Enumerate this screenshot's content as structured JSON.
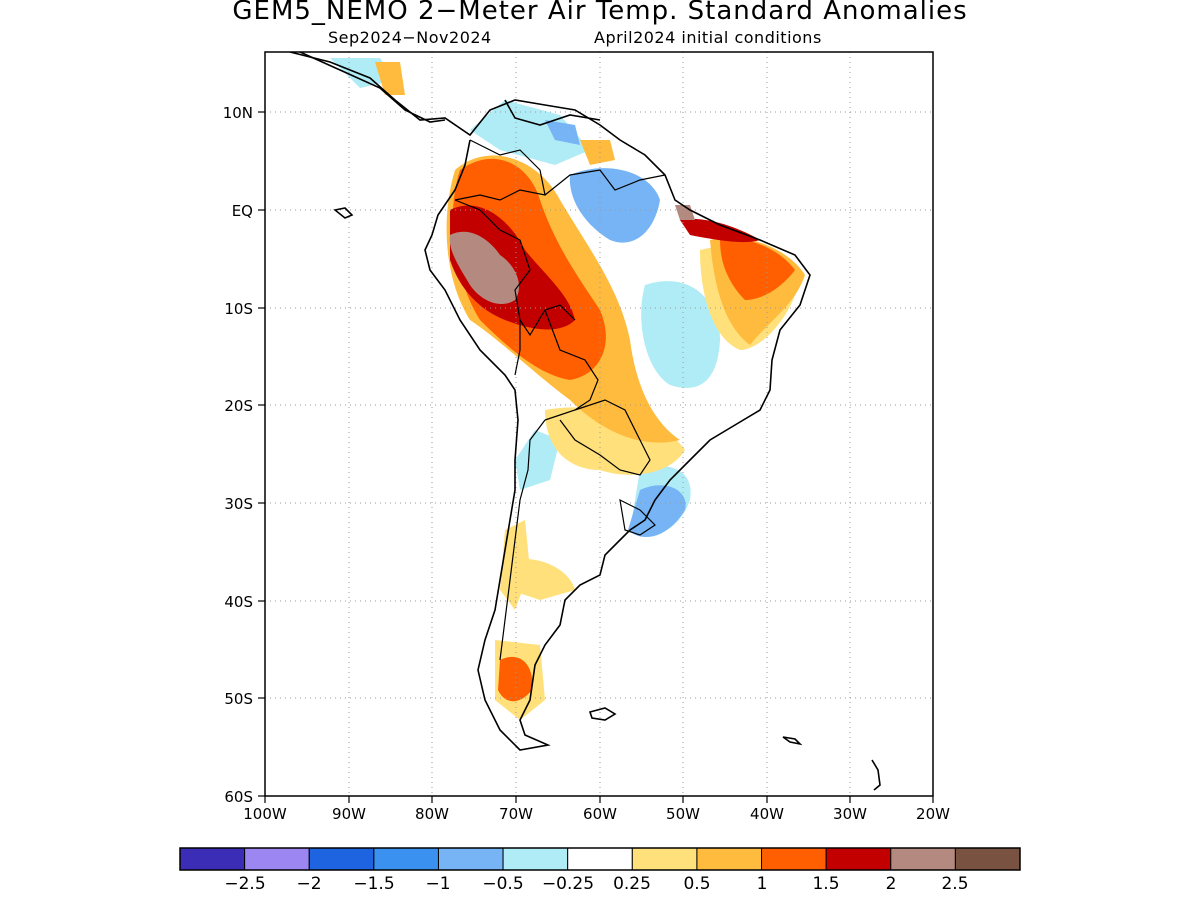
{
  "title": "GEM5_NEMO 2-Meter Air Temp. Standard Anomalies",
  "subtitle_left": "Sep2024-Nov2024",
  "subtitle_right": "April2024 initial conditions",
  "map": {
    "lon_ticks": [
      "100W",
      "90W",
      "80W",
      "70W",
      "60W",
      "50W",
      "40W",
      "30W",
      "20W"
    ],
    "lat_ticks": [
      "10N",
      "EQ",
      "10S",
      "20S",
      "30S",
      "40S",
      "50S",
      "60S"
    ],
    "lon_values": [
      -100,
      -90,
      -80,
      -70,
      -60,
      -50,
      -40,
      -30,
      -20
    ],
    "lat_values": [
      10,
      0,
      -10,
      -20,
      -30,
      -40,
      -50,
      -60
    ],
    "grid": "dotted",
    "projection": "lat-lon"
  },
  "colorbar": {
    "colors": [
      "#3b2db5",
      "#9b86f2",
      "#1e64e0",
      "#3a91ef",
      "#76b4f6",
      "#b0ecf6",
      "#ffffff",
      "#ffe07a",
      "#ffbb3d",
      "#ff5f00",
      "#c20000",
      "#b48a80",
      "#7a5242"
    ],
    "labels": [
      "-2.5",
      "-2",
      "-1.5",
      "-1",
      "-0.5",
      "-0.25",
      "0.25",
      "0.5",
      "1",
      "1.5",
      "2",
      "2.5"
    ]
  }
}
